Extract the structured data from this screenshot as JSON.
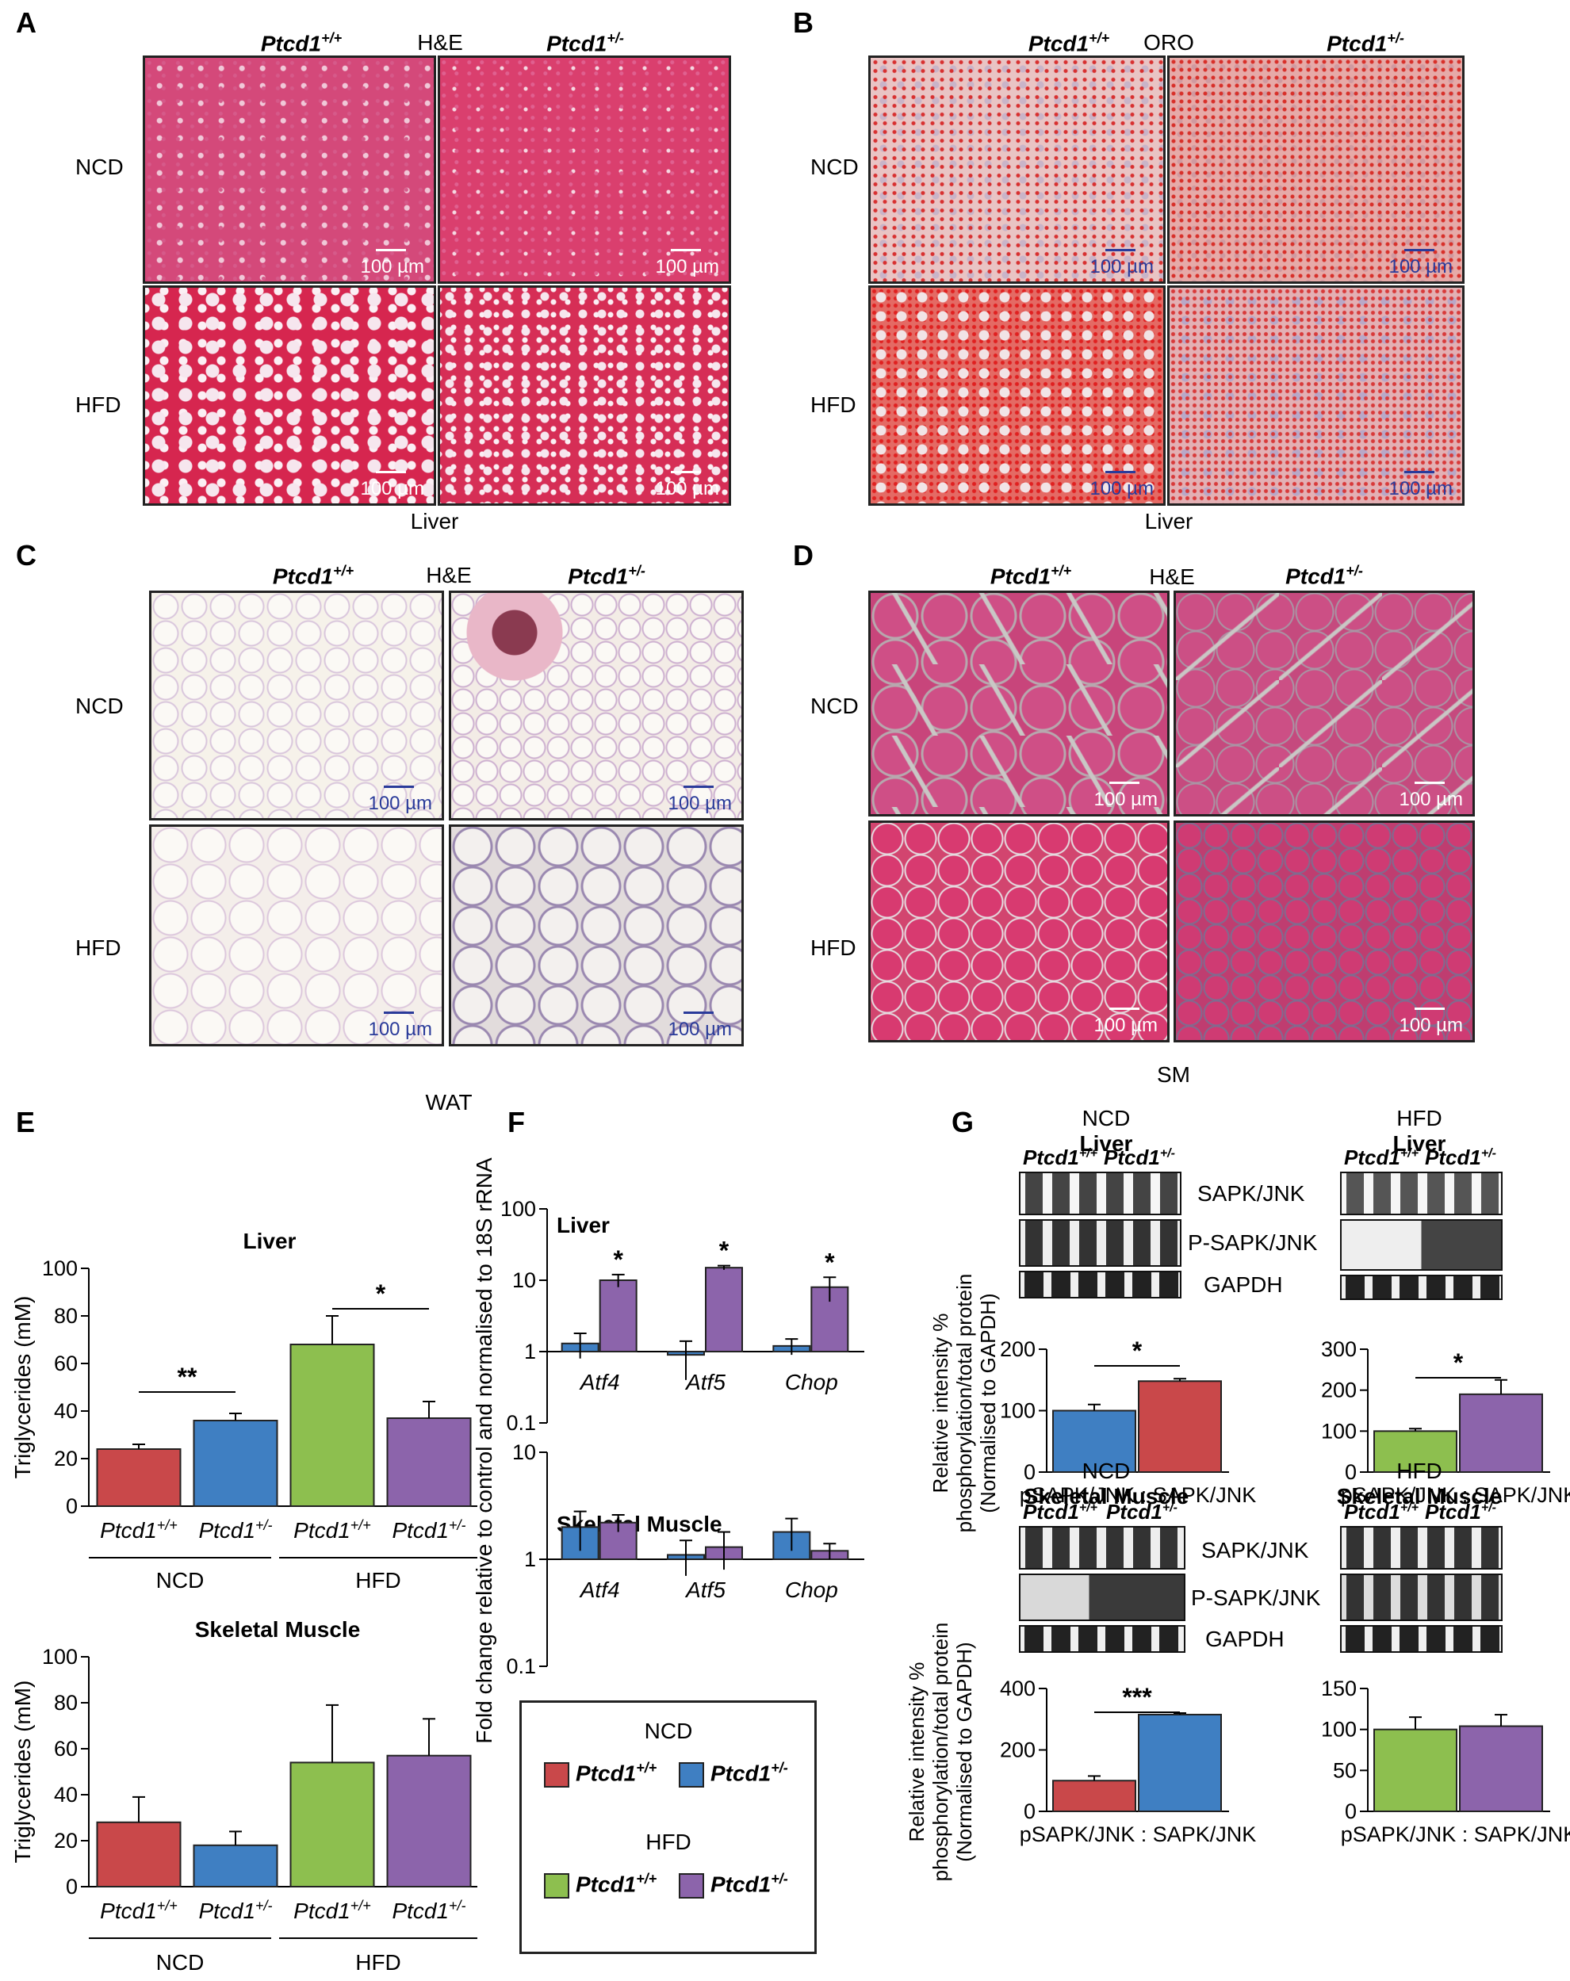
{
  "panels": {
    "A": {
      "letter": "A",
      "stain": "H&E",
      "tissue": "Liver"
    },
    "B": {
      "letter": "B",
      "stain": "ORO",
      "tissue": "Liver"
    },
    "C": {
      "letter": "C",
      "stain": "H&E",
      "tissue": "WAT"
    },
    "D": {
      "letter": "D",
      "stain": "H&E",
      "tissue": "SM"
    },
    "E": {
      "letter": "E"
    },
    "F": {
      "letter": "F"
    },
    "G": {
      "letter": "G"
    }
  },
  "genotypes": {
    "wt": "Ptcd1",
    "wt_sup": "+/+",
    "het": "Ptcd1",
    "het_sup": "+/-"
  },
  "diets": {
    "ncd": "NCD",
    "hfd": "HFD"
  },
  "scale_bar": "100 µm",
  "colors": {
    "ncd_wt": "#c9484a",
    "ncd_het": "#3f7fc2",
    "hfd_wt": "#8dbf4f",
    "hfd_het": "#8c64ab"
  },
  "chart_data": [
    {
      "id": "E-liver",
      "type": "bar",
      "title": "Liver",
      "ylabel": "Triglycerides (mM)",
      "ylim": [
        0,
        100
      ],
      "yticks": [
        0,
        20,
        40,
        60,
        80,
        100
      ],
      "categories": [
        "Ptcd1+/+ NCD",
        "Ptcd1+/- NCD",
        "Ptcd1+/+ HFD",
        "Ptcd1+/- HFD"
      ],
      "values": [
        24,
        36,
        68,
        37
      ],
      "errors": [
        2,
        3,
        12,
        7
      ],
      "colors": [
        "#c9484a",
        "#3f7fc2",
        "#8dbf4f",
        "#8c64ab"
      ],
      "significance": [
        {
          "pair": [
            0,
            1
          ],
          "label": "**"
        },
        {
          "pair": [
            2,
            3
          ],
          "label": "*"
        }
      ]
    },
    {
      "id": "E-muscle",
      "type": "bar",
      "title": "Skeletal Muscle",
      "ylabel": "Triglycerides (mM)",
      "ylim": [
        0,
        100
      ],
      "yticks": [
        0,
        20,
        40,
        60,
        80,
        100
      ],
      "categories": [
        "Ptcd1+/+ NCD",
        "Ptcd1+/- NCD",
        "Ptcd1+/+ HFD",
        "Ptcd1+/- HFD"
      ],
      "values": [
        28,
        18,
        54,
        57
      ],
      "errors": [
        11,
        6,
        25,
        16
      ],
      "colors": [
        "#c9484a",
        "#3f7fc2",
        "#8dbf4f",
        "#8c64ab"
      ]
    },
    {
      "id": "F-liver",
      "type": "bar",
      "title": "Liver",
      "scale": "log",
      "ylabel": "Fold change relative to control and normalised to 18S rRNA",
      "ylim": [
        0.1,
        100
      ],
      "yticks": [
        "0.1",
        "1",
        "10",
        "100"
      ],
      "categories": [
        "Atf4",
        "Atf5",
        "Chop"
      ],
      "series": [
        {
          "name": "Ptcd1+/+",
          "values": [
            1.3,
            0.9,
            1.2
          ],
          "errors": [
            0.5,
            0.5,
            0.3
          ],
          "color": "#3f7fc2"
        },
        {
          "name": "Ptcd1+/-",
          "values": [
            10,
            15,
            8
          ],
          "errors": [
            2,
            1,
            3
          ],
          "color": "#8c64ab"
        }
      ],
      "significance": [
        "*",
        "*",
        "*"
      ]
    },
    {
      "id": "F-muscle",
      "type": "bar",
      "title": "Skeletal Muscle",
      "scale": "log",
      "ylim": [
        0.1,
        10
      ],
      "yticks": [
        "0.1",
        "1",
        "10"
      ],
      "categories": [
        "Atf4",
        "Atf5",
        "Chop"
      ],
      "series": [
        {
          "name": "Ptcd1+/+",
          "values": [
            2,
            1.1,
            1.8
          ],
          "errors": [
            0.8,
            0.4,
            0.6
          ],
          "color": "#3f7fc2"
        },
        {
          "name": "Ptcd1+/-",
          "values": [
            2.2,
            1.3,
            1.2
          ],
          "errors": [
            0.4,
            0.5,
            0.2
          ],
          "color": "#8c64ab"
        }
      ]
    },
    {
      "id": "G-ncd-liver",
      "type": "bar",
      "ylim": [
        0,
        200
      ],
      "yticks": [
        0,
        100,
        200
      ],
      "xlabel": "pSAPK/JNK : SAPK/JNK",
      "ylabel": "Relative intensity % phosphorylation/total protein (Normalised to GAPDH)",
      "values": [
        100,
        148
      ],
      "errors": [
        10,
        4
      ],
      "colors": [
        "#3f7fc2",
        "#c9484a"
      ],
      "significance": "*"
    },
    {
      "id": "G-hfd-liver",
      "type": "bar",
      "ylim": [
        0,
        300
      ],
      "yticks": [
        0,
        100,
        200,
        300
      ],
      "xlabel": "pSAPK/JNK : SAPK/JNK",
      "values": [
        100,
        190
      ],
      "errors": [
        6,
        35
      ],
      "colors": [
        "#8dbf4f",
        "#8c64ab"
      ],
      "significance": "*"
    },
    {
      "id": "G-ncd-muscle",
      "type": "bar",
      "ylim": [
        0,
        400
      ],
      "yticks": [
        0,
        200,
        400
      ],
      "xlabel": "pSAPK/JNK : SAPK/JNK",
      "ylabel": "Relative intensity % phosphorylation/total protein (Normalised to GAPDH)",
      "values": [
        100,
        315
      ],
      "errors": [
        15,
        5
      ],
      "colors": [
        "#c9484a",
        "#3f7fc2"
      ],
      "significance": "***"
    },
    {
      "id": "G-hfd-muscle",
      "type": "bar",
      "ylim": [
        0,
        150
      ],
      "yticks": [
        0,
        50,
        100,
        150
      ],
      "xlabel": "pSAPK/JNK : SAPK/JNK",
      "values": [
        100,
        104
      ],
      "errors": [
        15,
        14
      ],
      "colors": [
        "#8dbf4f",
        "#8c64ab"
      ]
    }
  ],
  "blots": {
    "ncd_liver": {
      "diet": "NCD",
      "tissue": "Liver"
    },
    "hfd_liver": {
      "diet": "HFD",
      "tissue": "Liver"
    },
    "ncd_muscle": {
      "diet": "NCD",
      "tissue": "Skeletal Muscle"
    },
    "hfd_muscle": {
      "diet": "HFD",
      "tissue": "Skeletal Muscle"
    },
    "bands": [
      "SAPK/JNK",
      "P-SAPK/JNK",
      "GAPDH"
    ]
  },
  "legend": {
    "ncd": "NCD",
    "hfd": "HFD"
  }
}
